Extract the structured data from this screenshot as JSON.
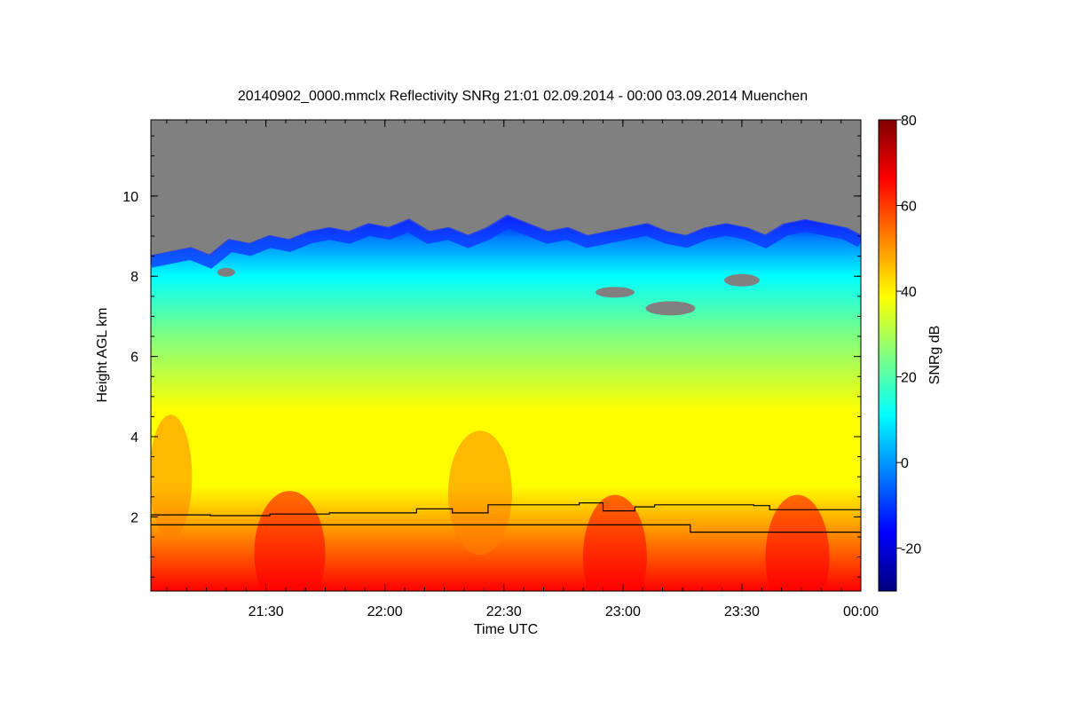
{
  "chart_data": {
    "type": "heatmap",
    "title": "20140902_0000.mmclx Reflectivity SNRg   21:01 02.09.2014 - 00:00 03.09.2014 Muenchen",
    "xlabel": "Time UTC",
    "ylabel": "Height AGL km",
    "colorbar_label": "SNRg dB",
    "xlim": [
      "21:01",
      "00:00"
    ],
    "x_ticks": [
      "21:30",
      "22:00",
      "22:30",
      "23:00",
      "23:30",
      "00:00"
    ],
    "ylim": [
      0.15,
      11.9
    ],
    "y_ticks": [
      2,
      4,
      6,
      8,
      10
    ],
    "colorbar_range": [
      -30,
      80
    ],
    "colorbar_ticks": [
      -20,
      0,
      20,
      40,
      60,
      80
    ],
    "colormap": [
      "#00007f",
      "#0000ff",
      "#0080ff",
      "#00ffff",
      "#80ff80",
      "#ffff00",
      "#ff8000",
      "#ff0000",
      "#7f0000"
    ],
    "no_data_color": "#808080",
    "series": [
      {
        "x": [
          "21:01",
          "21:16",
          "21:31",
          "21:46",
          "22:08",
          "22:17",
          "22:26",
          "22:49",
          "22:55",
          "23:03",
          "23:08",
          "23:33",
          "23:37",
          "00:00"
        ],
        "y": [
          2.05,
          2.03,
          2.07,
          2.1,
          2.2,
          2.1,
          2.3,
          2.35,
          2.15,
          2.25,
          2.3,
          2.28,
          2.18,
          2.18
        ]
      },
      {
        "x": [
          "21:01",
          "23:16",
          "23:17",
          "00:00"
        ],
        "y": [
          1.8,
          1.8,
          1.62,
          1.62
        ]
      }
    ],
    "cloud_top": {
      "x": [
        "21:01",
        "21:06",
        "21:11",
        "21:16",
        "21:21",
        "21:26",
        "21:31",
        "21:36",
        "21:41",
        "21:46",
        "21:51",
        "21:56",
        "22:01",
        "22:06",
        "22:11",
        "22:16",
        "22:21",
        "22:26",
        "22:31",
        "22:36",
        "22:41",
        "22:46",
        "22:51",
        "22:56",
        "23:01",
        "23:06",
        "23:11",
        "23:16",
        "23:21",
        "23:26",
        "23:31",
        "23:36",
        "23:41",
        "23:46",
        "23:51",
        "23:56",
        "00:00"
      ],
      "y": [
        8.5,
        8.6,
        8.7,
        8.5,
        8.9,
        8.8,
        9.0,
        8.9,
        9.1,
        9.2,
        9.1,
        9.3,
        9.2,
        9.4,
        9.1,
        9.2,
        9.0,
        9.2,
        9.5,
        9.3,
        9.1,
        9.2,
        9.0,
        9.1,
        9.2,
        9.3,
        9.1,
        9.0,
        9.2,
        9.3,
        9.2,
        9.0,
        9.3,
        9.4,
        9.3,
        9.2,
        9.0
      ]
    }
  }
}
